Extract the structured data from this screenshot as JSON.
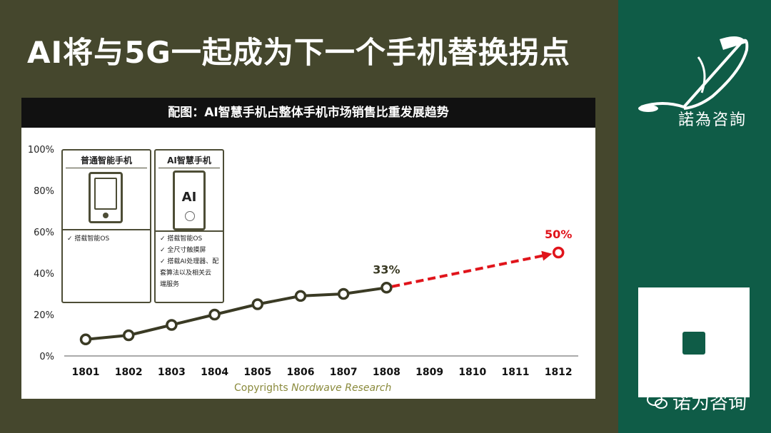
{
  "slide": {
    "title": "AI将与5G一起成为下一个手机替换拐点",
    "brand_name": "諾為咨詢",
    "wechat_label": "诺为咨询"
  },
  "colors": {
    "background": "#45472d",
    "right_panel": "#0f5c47",
    "line": "#3a3a24",
    "projection": "#e0141b",
    "header_bar": "#111111"
  },
  "chart_header": "配图：AI智慧手机占整体手机市场销售比重发展趋势",
  "copyright": {
    "lead": "Copyrights",
    "name": "Nordwave Research"
  },
  "cards": {
    "normal": {
      "title": "普通智能手机",
      "features": [
        "✓ 搭载智能OS"
      ]
    },
    "ai": {
      "title": "AI智慧手机",
      "icon_text": "AI",
      "features": [
        "✓ 搭载智能OS",
        "✓ 全尺寸触摸屏",
        "✓ 搭载AI处理器、配",
        "   套算法以及相关云",
        "   端服务"
      ]
    }
  },
  "chart_data": {
    "type": "line",
    "title": "AI智慧手机占整体手机市场销售比重发展趋势",
    "x": [
      "1801",
      "1802",
      "1803",
      "1804",
      "1805",
      "1806",
      "1807",
      "1808",
      "1809",
      "1810",
      "1811",
      "1812"
    ],
    "y_ticks": [
      "0%",
      "20%",
      "40%",
      "60%",
      "80%",
      "100%"
    ],
    "ylim": [
      0,
      100
    ],
    "series": [
      {
        "style": "solid",
        "color": "#3a3a24",
        "x": [
          "1801",
          "1802",
          "1803",
          "1804",
          "1805",
          "1806",
          "1807",
          "1808"
        ],
        "values": [
          8,
          10,
          15,
          20,
          25,
          29,
          30,
          33
        ]
      },
      {
        "style": "dashed",
        "color": "#e0141b",
        "x": [
          "1808",
          "1812"
        ],
        "values": [
          33,
          50
        ]
      }
    ],
    "annotations": [
      {
        "x": "1808",
        "y": 33,
        "text": "33%",
        "color": "#3a3a24"
      },
      {
        "x": "1812",
        "y": 50,
        "text": "50%",
        "color": "#e0141b"
      }
    ],
    "grid": false
  }
}
